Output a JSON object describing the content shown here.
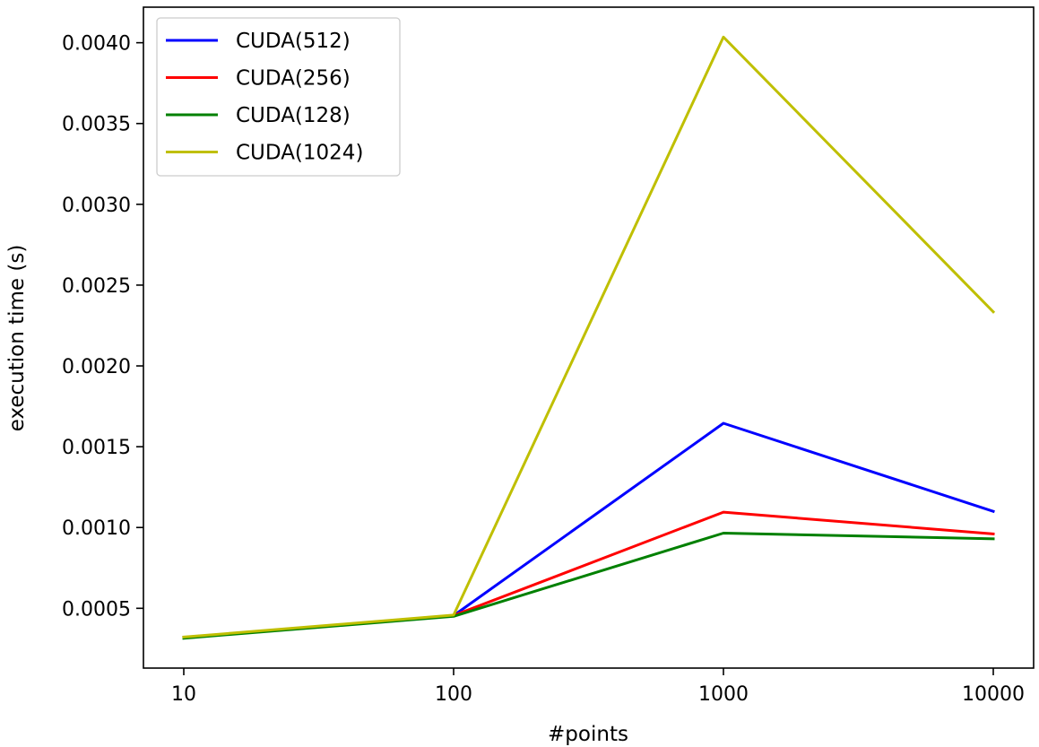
{
  "chart_data": {
    "type": "line",
    "xlabel": "#points",
    "ylabel": "execution time (s)",
    "x": [
      "10",
      "100",
      "1000",
      "10000"
    ],
    "x_scale": "log",
    "ylim": [
      0.00013,
      0.00422
    ],
    "y_ticks": [
      "0.0005",
      "0.0010",
      "0.0015",
      "0.0020",
      "0.0025",
      "0.0030",
      "0.0035",
      "0.0040"
    ],
    "grid": false,
    "legend_position": "top-left",
    "series": [
      {
        "name": "CUDA(512)",
        "color": "#0000ff",
        "values": [
          0.00032,
          0.000455,
          0.001645,
          0.0011
        ]
      },
      {
        "name": "CUDA(256)",
        "color": "#ff0000",
        "values": [
          0.00032,
          0.000455,
          0.001095,
          0.00096
        ]
      },
      {
        "name": "CUDA(128)",
        "color": "#008000",
        "values": [
          0.000315,
          0.00045,
          0.000965,
          0.00093
        ]
      },
      {
        "name": "CUDA(1024)",
        "color": "#bfbf00",
        "values": [
          0.000322,
          0.000458,
          0.004035,
          0.002335
        ]
      }
    ]
  }
}
